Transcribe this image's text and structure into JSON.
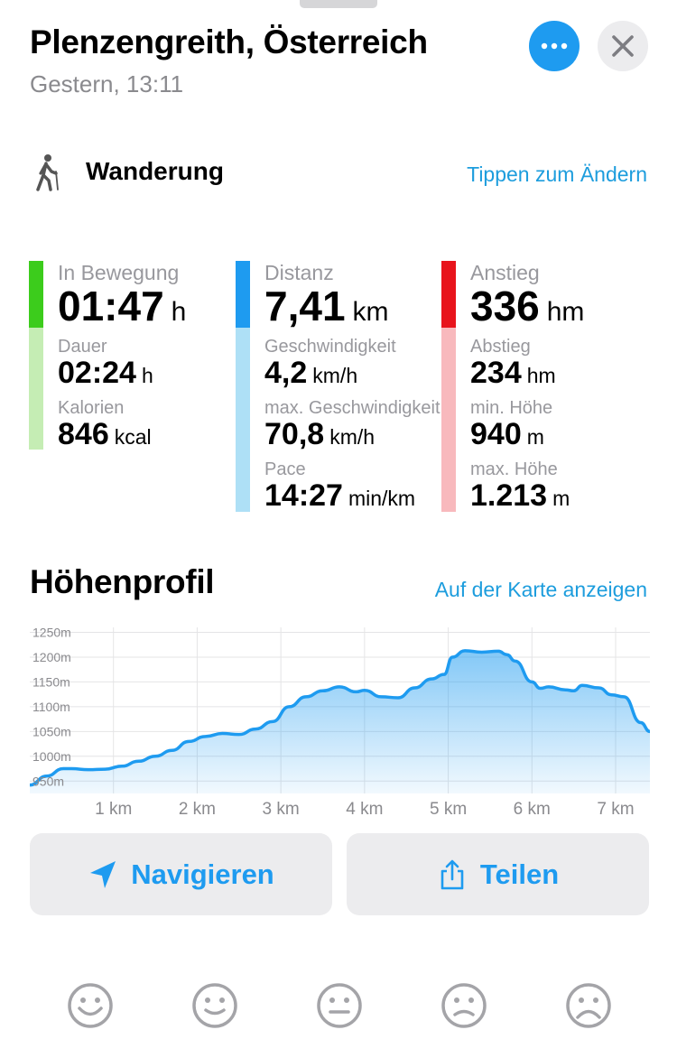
{
  "header": {
    "title": "Plenzengreith, Österreich",
    "subtitle": "Gestern, 13:11"
  },
  "activity": {
    "icon": "hiking-icon",
    "label": "Wanderung",
    "change_link": "Tippen zum Ändern"
  },
  "stats": {
    "movement": {
      "color_top": "#3ccc1c",
      "color_bottom": "#c5edb4",
      "main": {
        "label": "In Bewegung",
        "value": "01:47",
        "unit": "h"
      },
      "items": [
        {
          "label": "Dauer",
          "value": "02:24",
          "unit": "h"
        },
        {
          "label": "Kalorien",
          "value": "846",
          "unit": "kcal"
        }
      ]
    },
    "distance": {
      "color_top": "#1e9bf0",
      "color_bottom": "#aee0f6",
      "main": {
        "label": "Distanz",
        "value": "7,41",
        "unit": "km"
      },
      "items": [
        {
          "label": "Geschwindigkeit",
          "value": "4,2",
          "unit": "km/h"
        },
        {
          "label": "max. Geschwindigkeit",
          "value": "70,8",
          "unit": "km/h"
        },
        {
          "label": "Pace",
          "value": "14:27",
          "unit": "min/km"
        }
      ]
    },
    "elevation": {
      "color_top": "#e8141c",
      "color_bottom": "#f8b9bd",
      "main": {
        "label": "Anstieg",
        "value": "336",
        "unit": "hm"
      },
      "items": [
        {
          "label": "Abstieg",
          "value": "234",
          "unit": "hm"
        },
        {
          "label": "min. Höhe",
          "value": "940",
          "unit": "m"
        },
        {
          "label": "max. Höhe",
          "value": "1.213",
          "unit": "m"
        }
      ]
    }
  },
  "profile": {
    "title": "Höhenprofil",
    "map_link": "Auf der Karte anzeigen"
  },
  "chart_data": {
    "type": "area",
    "title": "Höhenprofil",
    "xlabel": "",
    "ylabel": "",
    "xlim": [
      0,
      7.41
    ],
    "ylim": [
      925,
      1260
    ],
    "y_ticks": [
      950,
      1000,
      1050,
      1100,
      1150,
      1200,
      1250
    ],
    "y_tick_labels": [
      "950m",
      "1000m",
      "1050m",
      "1100m",
      "1150m",
      "1200m",
      "1250m"
    ],
    "x_ticks": [
      1,
      2,
      3,
      4,
      5,
      6,
      7
    ],
    "x_tick_labels": [
      "1 km",
      "2 km",
      "3 km",
      "4 km",
      "5 km",
      "6 km",
      "7 km"
    ],
    "grid": true,
    "line_color": "#1e9bf0",
    "fill_color": "#1e9bf0",
    "series": [
      {
        "x": [
          0,
          0.2,
          0.4,
          0.5,
          0.7,
          0.9,
          1.1,
          1.3,
          1.5,
          1.7,
          1.9,
          2.1,
          2.3,
          2.5,
          2.7,
          2.9,
          3.1,
          3.3,
          3.5,
          3.7,
          3.9,
          4.0,
          4.2,
          4.4,
          4.6,
          4.8,
          4.95,
          5.05,
          5.2,
          5.4,
          5.6,
          5.7,
          5.8,
          6.0,
          6.1,
          6.2,
          6.4,
          6.5,
          6.6,
          6.8,
          6.95,
          7.1,
          7.3,
          7.41
        ],
        "y": [
          942,
          960,
          975,
          975,
          973,
          974,
          980,
          990,
          1000,
          1012,
          1030,
          1040,
          1046,
          1044,
          1055,
          1070,
          1100,
          1120,
          1132,
          1140,
          1130,
          1133,
          1120,
          1118,
          1138,
          1156,
          1165,
          1200,
          1213,
          1210,
          1212,
          1205,
          1192,
          1150,
          1137,
          1140,
          1134,
          1132,
          1143,
          1138,
          1124,
          1120,
          1068,
          1050
        ]
      }
    ]
  },
  "actions": {
    "navigate": {
      "label": "Navigieren",
      "icon": "navigation-arrow-icon"
    },
    "share": {
      "label": "Teilen",
      "icon": "share-icon"
    }
  },
  "rating": {
    "faces": [
      "very-happy-face-icon",
      "happy-face-icon",
      "neutral-face-icon",
      "sad-face-icon",
      "very-sad-face-icon"
    ]
  }
}
